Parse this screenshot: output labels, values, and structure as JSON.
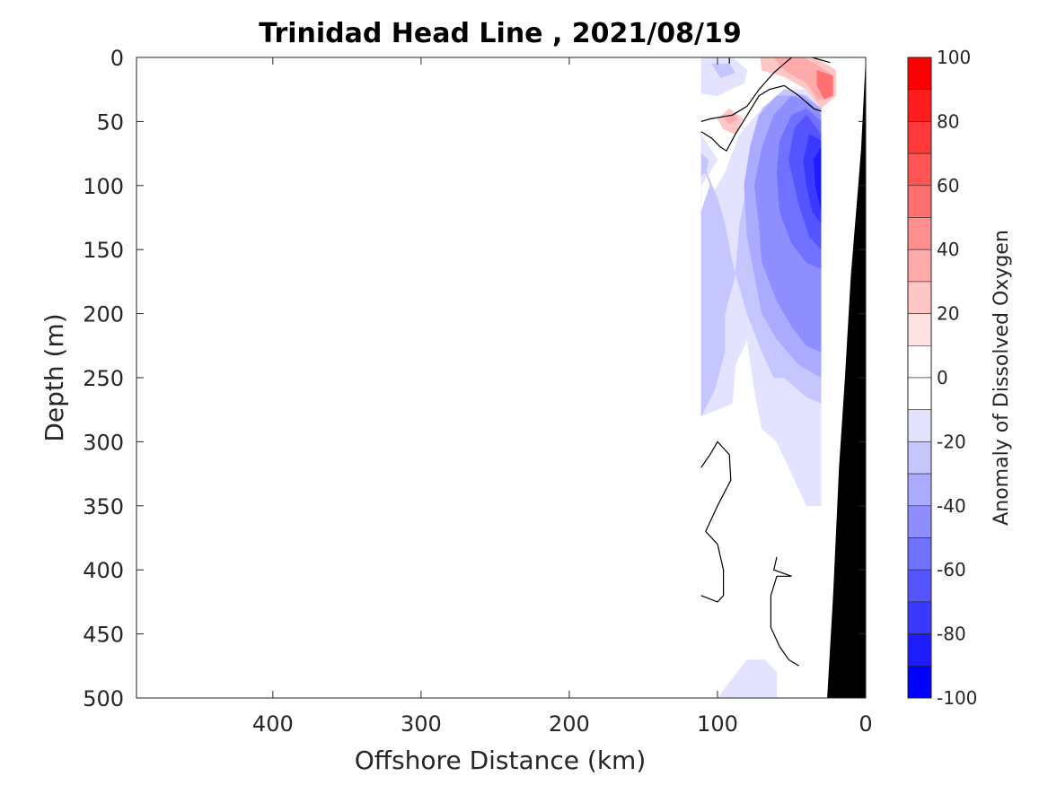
{
  "chart_data": {
    "type": "heatmap",
    "subtype": "filled-contour-section",
    "title": "Trinidad Head Line , 2021/08/19",
    "xlabel": "Offshore Distance (km)",
    "ylabel": "Depth (m)",
    "xlim": [
      492,
      0
    ],
    "ylim": [
      0,
      500
    ],
    "x_reversed": true,
    "y_reversed": true,
    "xticks": [
      400,
      300,
      200,
      100,
      0
    ],
    "xtick_labels": [
      "400",
      "300",
      "200",
      "100",
      "0"
    ],
    "yticks": [
      0,
      50,
      100,
      150,
      200,
      250,
      300,
      350,
      400,
      450,
      500
    ],
    "ytick_labels": [
      "0",
      "50",
      "100",
      "150",
      "200",
      "250",
      "300",
      "350",
      "400",
      "450",
      "500"
    ],
    "colorbar": {
      "label": "Anomaly of Dissolved Oxygen",
      "range": [
        -100,
        100
      ],
      "step": 10,
      "ticks": [
        100,
        80,
        60,
        40,
        20,
        0,
        -20,
        -40,
        -60,
        -80,
        -100
      ],
      "tick_labels": [
        "100",
        "80",
        "60",
        "40",
        "20",
        "0",
        "-20",
        "-40",
        "-60",
        "-80",
        "-100"
      ],
      "levels": [
        {
          "min": 90,
          "max": 100,
          "color": "#ff0000"
        },
        {
          "min": 80,
          "max": 90,
          "color": "#ff1c1c"
        },
        {
          "min": 70,
          "max": 80,
          "color": "#ff3939"
        },
        {
          "min": 60,
          "max": 70,
          "color": "#ff5555"
        },
        {
          "min": 50,
          "max": 60,
          "color": "#ff7171"
        },
        {
          "min": 40,
          "max": 50,
          "color": "#ff8e8e"
        },
        {
          "min": 30,
          "max": 40,
          "color": "#ffaaaa"
        },
        {
          "min": 20,
          "max": 30,
          "color": "#ffc6c6"
        },
        {
          "min": 10,
          "max": 20,
          "color": "#ffe3e3"
        },
        {
          "min": 0,
          "max": 10,
          "color": "#ffffff"
        },
        {
          "min": -10,
          "max": 0,
          "color": "#ffffff"
        },
        {
          "min": -20,
          "max": -10,
          "color": "#e3e3ff"
        },
        {
          "min": -30,
          "max": -20,
          "color": "#c6c6ff"
        },
        {
          "min": -40,
          "max": -30,
          "color": "#aaaaff"
        },
        {
          "min": -50,
          "max": -40,
          "color": "#8e8eff"
        },
        {
          "min": -60,
          "max": -50,
          "color": "#7171ff"
        },
        {
          "min": -70,
          "max": -60,
          "color": "#5555ff"
        },
        {
          "min": -80,
          "max": -70,
          "color": "#3939ff"
        },
        {
          "min": -90,
          "max": -80,
          "color": "#1c1cff"
        },
        {
          "min": -100,
          "max": -90,
          "color": "#0000ff"
        }
      ]
    },
    "data_extent": {
      "x_km": [
        111,
        30
      ],
      "depth_m": [
        0,
        500
      ]
    },
    "contour_regions": [
      {
        "name": "offshore-surface-negative",
        "level": -20,
        "points": [
          [
            111,
            0
          ],
          [
            90,
            0
          ],
          [
            80,
            10
          ],
          [
            82,
            20
          ],
          [
            100,
            30
          ],
          [
            111,
            28
          ]
        ]
      },
      {
        "name": "offshore-surface-negative-core",
        "level": -30,
        "points": [
          [
            104,
            5
          ],
          [
            92,
            5
          ],
          [
            88,
            12
          ],
          [
            98,
            16
          ]
        ]
      },
      {
        "name": "surface-positive",
        "level": 20,
        "points": [
          [
            71,
            0
          ],
          [
            34,
            0
          ],
          [
            20,
            10
          ],
          [
            20,
            30
          ],
          [
            30,
            40
          ],
          [
            40,
            25
          ],
          [
            55,
            15
          ],
          [
            70,
            10
          ]
        ]
      },
      {
        "name": "surface-positive-mid",
        "level": 30,
        "points": [
          [
            62,
            0
          ],
          [
            42,
            0
          ],
          [
            24,
            12
          ],
          [
            24,
            28
          ],
          [
            32,
            34
          ],
          [
            40,
            20
          ],
          [
            55,
            10
          ]
        ]
      },
      {
        "name": "surface-positive-core",
        "level": 50,
        "points": [
          [
            33,
            10
          ],
          [
            22,
            14
          ],
          [
            22,
            30
          ],
          [
            28,
            33
          ],
          [
            33,
            22
          ]
        ]
      },
      {
        "name": "subsurface-positive",
        "level": 20,
        "points": [
          [
            100,
            48
          ],
          [
            92,
            40
          ],
          [
            83,
            48
          ],
          [
            88,
            60
          ],
          [
            96,
            56
          ]
        ]
      },
      {
        "name": "subsurface-positive-core",
        "level": 30,
        "points": [
          [
            95,
            48
          ],
          [
            90,
            44
          ],
          [
            86,
            48
          ],
          [
            92,
            52
          ]
        ]
      },
      {
        "name": "main-negative-1",
        "level": -20,
        "points": [
          [
            111,
            60
          ],
          [
            100,
            80
          ],
          [
            111,
            100
          ],
          [
            111,
            280
          ],
          [
            100,
            275
          ],
          [
            90,
            270
          ],
          [
            88,
            240
          ],
          [
            80,
            220
          ],
          [
            75,
            260
          ],
          [
            70,
            290
          ],
          [
            60,
            300
          ],
          [
            48,
            330
          ],
          [
            40,
            350
          ],
          [
            30,
            350
          ],
          [
            30,
            30
          ],
          [
            40,
            25
          ],
          [
            55,
            25
          ],
          [
            70,
            40
          ],
          [
            85,
            60
          ],
          [
            95,
            90
          ],
          [
            105,
            110
          ],
          [
            102,
            130
          ],
          [
            108,
            160
          ],
          [
            111,
            180
          ]
        ]
      },
      {
        "name": "main-negative-2",
        "level": -30,
        "points": [
          [
            111,
            80
          ],
          [
            105,
            100
          ],
          [
            111,
            120
          ],
          [
            111,
            280
          ],
          [
            102,
            260
          ],
          [
            95,
            230
          ],
          [
            95,
            200
          ],
          [
            88,
            170
          ],
          [
            85,
            130
          ],
          [
            80,
            100
          ],
          [
            75,
            70
          ],
          [
            70,
            40
          ],
          [
            55,
            25
          ],
          [
            40,
            30
          ],
          [
            30,
            40
          ],
          [
            30,
            270
          ],
          [
            40,
            265
          ],
          [
            55,
            250
          ],
          [
            62,
            250
          ],
          [
            70,
            230
          ],
          [
            80,
            200
          ],
          [
            90,
            160
          ],
          [
            95,
            130
          ],
          [
            100,
            110
          ]
        ]
      },
      {
        "name": "main-negative-3",
        "level": -40,
        "points": [
          [
            82,
            100
          ],
          [
            78,
            70
          ],
          [
            72,
            45
          ],
          [
            60,
            30
          ],
          [
            42,
            30
          ],
          [
            30,
            40
          ],
          [
            30,
            250
          ],
          [
            45,
            240
          ],
          [
            60,
            220
          ],
          [
            70,
            200
          ],
          [
            75,
            170
          ],
          [
            80,
            140
          ]
        ]
      },
      {
        "name": "main-negative-4",
        "level": -50,
        "points": [
          [
            75,
            100
          ],
          [
            70,
            70
          ],
          [
            62,
            45
          ],
          [
            50,
            30
          ],
          [
            38,
            35
          ],
          [
            30,
            45
          ],
          [
            30,
            230
          ],
          [
            40,
            225
          ],
          [
            50,
            210
          ],
          [
            60,
            190
          ],
          [
            70,
            160
          ],
          [
            72,
            130
          ]
        ]
      },
      {
        "name": "main-negative-5",
        "level": -60,
        "points": [
          [
            60,
            90
          ],
          [
            58,
            65
          ],
          [
            50,
            45
          ],
          [
            40,
            40
          ],
          [
            30,
            50
          ],
          [
            30,
            165
          ],
          [
            40,
            160
          ],
          [
            50,
            145
          ],
          [
            58,
            120
          ]
        ]
      },
      {
        "name": "main-negative-6",
        "level": -70,
        "points": [
          [
            52,
            80
          ],
          [
            48,
            55
          ],
          [
            40,
            45
          ],
          [
            30,
            60
          ],
          [
            30,
            150
          ],
          [
            38,
            140
          ],
          [
            45,
            115
          ]
        ]
      },
      {
        "name": "main-negative-7",
        "level": -80,
        "points": [
          [
            42,
            80
          ],
          [
            38,
            60
          ],
          [
            30,
            65
          ],
          [
            30,
            130
          ],
          [
            36,
            120
          ],
          [
            40,
            100
          ]
        ]
      },
      {
        "name": "main-negative-8",
        "level": -90,
        "points": [
          [
            35,
            80
          ],
          [
            30,
            70
          ],
          [
            30,
            120
          ],
          [
            34,
            100
          ]
        ]
      },
      {
        "name": "offshore-negative-2",
        "level": -30,
        "points": [
          [
            111,
            75
          ],
          [
            106,
            80
          ],
          [
            108,
            90
          ],
          [
            111,
            92
          ]
        ]
      },
      {
        "name": "deep-negative",
        "level": -20,
        "points": [
          [
            100,
            500
          ],
          [
            90,
            485
          ],
          [
            80,
            470
          ],
          [
            68,
            470
          ],
          [
            60,
            480
          ],
          [
            60,
            500
          ]
        ]
      }
    ],
    "zero_contours": [
      {
        "name": "surface-upper",
        "points": [
          [
            111,
            50
          ],
          [
            105,
            48
          ],
          [
            90,
            45
          ],
          [
            80,
            38
          ],
          [
            72,
            25
          ],
          [
            62,
            12
          ],
          [
            55,
            5
          ],
          [
            50,
            0
          ]
        ]
      },
      {
        "name": "surface-lower",
        "points": [
          [
            111,
            58
          ],
          [
            104,
            63
          ],
          [
            98,
            70
          ],
          [
            94,
            73
          ],
          [
            88,
            60
          ],
          [
            80,
            45
          ],
          [
            72,
            30
          ],
          [
            65,
            25
          ],
          [
            55,
            22
          ],
          [
            45,
            30
          ],
          [
            35,
            40
          ],
          [
            30,
            42
          ]
        ]
      },
      {
        "name": "surface-corner",
        "points": [
          [
            36,
            0
          ],
          [
            30,
            2
          ],
          [
            24,
            4
          ]
        ]
      },
      {
        "name": "surface-tick",
        "points": [
          [
            92,
            0
          ],
          [
            92,
            5
          ]
        ]
      },
      {
        "name": "deep-left",
        "points": [
          [
            111,
            320
          ],
          [
            105,
            310
          ],
          [
            100,
            300
          ],
          [
            92,
            310
          ],
          [
            91,
            330
          ],
          [
            100,
            350
          ],
          [
            108,
            370
          ],
          [
            100,
            380
          ],
          [
            96,
            400
          ],
          [
            96,
            420
          ],
          [
            100,
            425
          ],
          [
            111,
            420
          ]
        ]
      },
      {
        "name": "deep-right",
        "points": [
          [
            60,
            390
          ],
          [
            62,
            400
          ],
          [
            50,
            405
          ],
          [
            60,
            405
          ],
          [
            64,
            420
          ],
          [
            64,
            445
          ],
          [
            58,
            460
          ],
          [
            52,
            470
          ],
          [
            45,
            475
          ]
        ]
      }
    ],
    "bathymetry": {
      "color": "#000000",
      "points": [
        [
          0,
          0
        ],
        [
          3,
          70
        ],
        [
          5,
          100
        ],
        [
          10,
          170
        ],
        [
          14,
          250
        ],
        [
          18,
          320
        ],
        [
          22,
          420
        ],
        [
          26,
          500
        ],
        [
          0,
          500
        ]
      ]
    },
    "data_boundary": {
      "x_km": 30
    }
  }
}
